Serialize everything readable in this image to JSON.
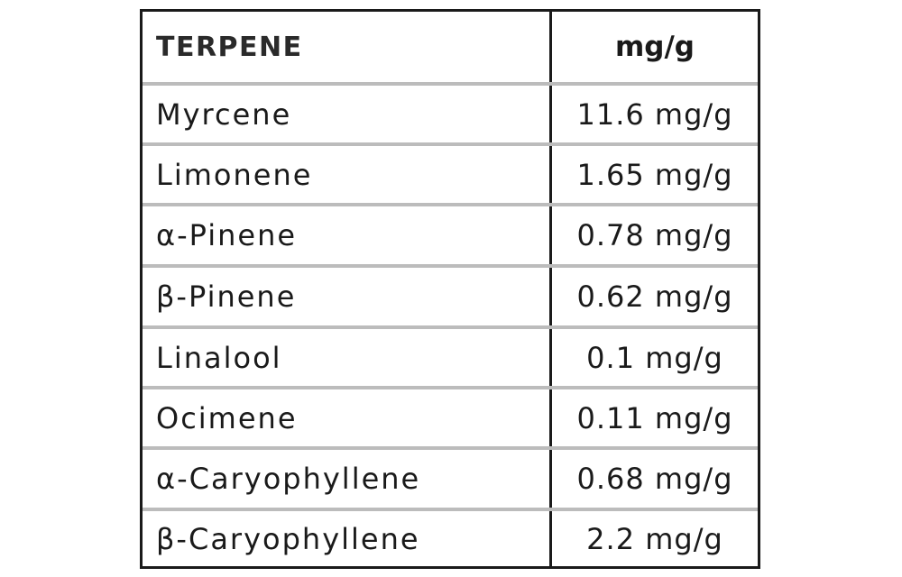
{
  "table": {
    "header": {
      "name_label": "TERPENE",
      "value_label": "mg/g"
    },
    "rows": [
      {
        "name": "Myrcene",
        "value": "11.6 mg/g"
      },
      {
        "name": "Limonene",
        "value": "1.65 mg/g"
      },
      {
        "name": "α-Pinene",
        "value": "0.78 mg/g"
      },
      {
        "name": "β-Pinene",
        "value": "0.62 mg/g"
      },
      {
        "name": "Linalool",
        "value": "0.1 mg/g"
      },
      {
        "name": "Ocimene",
        "value": "0.11 mg/g"
      },
      {
        "name": "α-Caryophyllene",
        "value": "0.68 mg/g"
      },
      {
        "name": "β-Caryophyllene",
        "value": "2.2 mg/g"
      }
    ]
  }
}
